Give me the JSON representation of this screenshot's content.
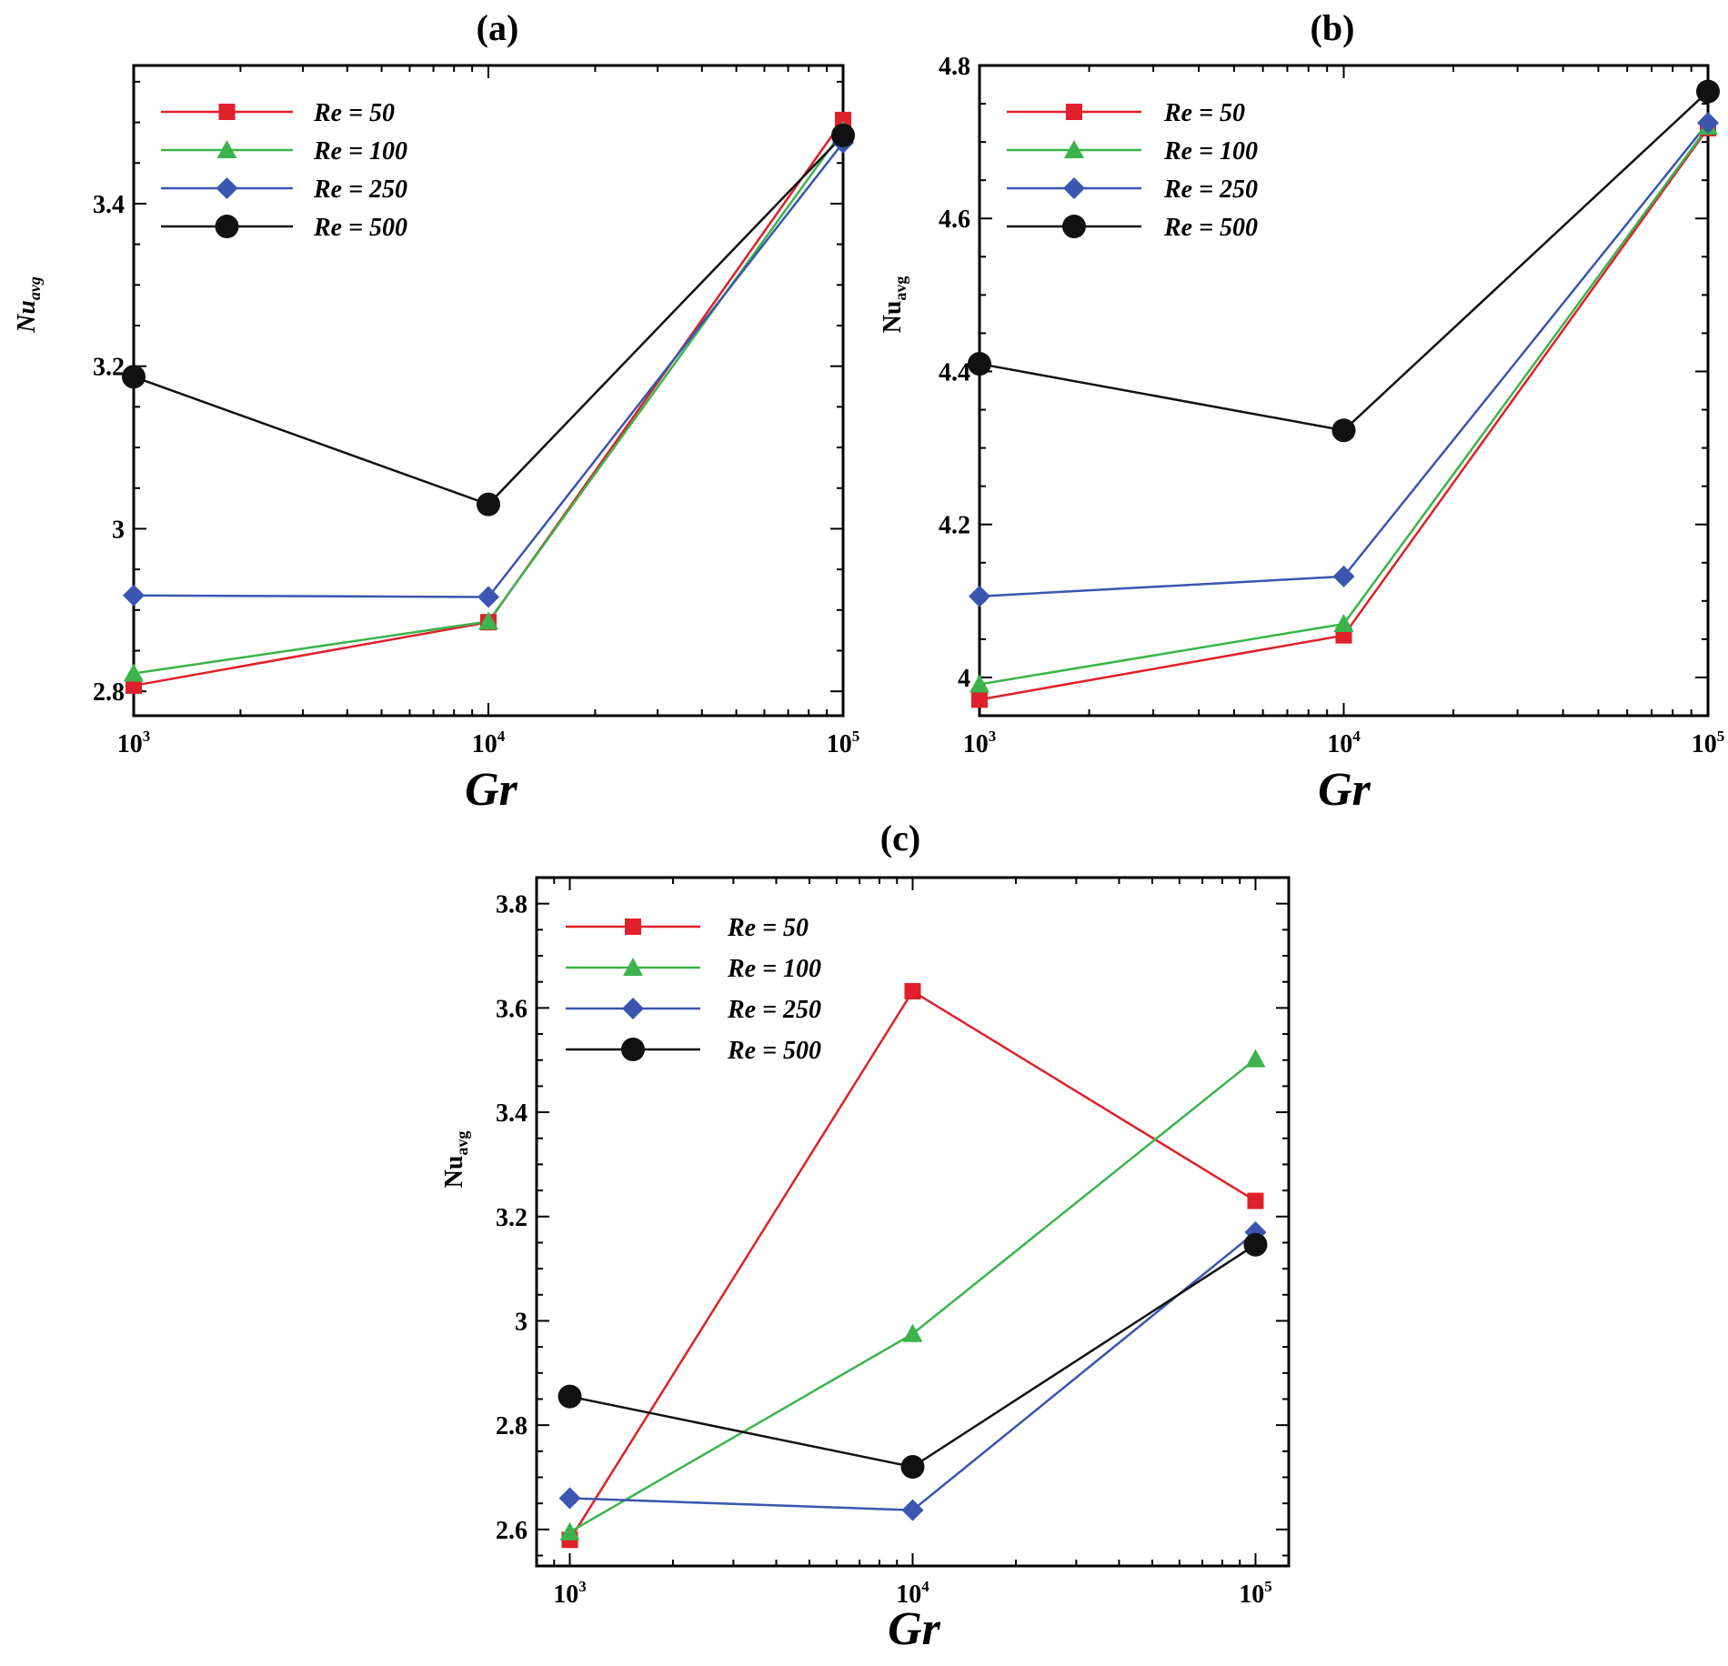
{
  "chart_data": [
    {
      "type": "line",
      "panel_title": "(a)",
      "xlabel": "Gr",
      "ylabel": {
        "base": "Nu",
        "sub": "avg"
      },
      "ylabel_italic": true,
      "x_scale": "log",
      "x": [
        1000,
        10000,
        100000
      ],
      "x_tick_labels": [
        {
          "base": "10",
          "exp": "3"
        },
        {
          "base": "10",
          "exp": "4"
        },
        {
          "base": "10",
          "exp": "5"
        }
      ],
      "xlim": [
        1000,
        100000
      ],
      "ylim": [
        2.77,
        3.57
      ],
      "y_ticks": [
        2.8,
        3,
        3.2,
        3.4
      ],
      "y_tick_labels": [
        "2.8",
        "3",
        "3.2",
        "3.4"
      ],
      "legend_position": "top-left",
      "series": [
        {
          "name": "Re = 50",
          "color": "#e0202a",
          "marker": "square",
          "values": [
            2.807,
            2.885,
            3.503
          ]
        },
        {
          "name": "Re = 100",
          "color": "#3cb44b",
          "marker": "triangle",
          "values": [
            2.822,
            2.886,
            3.49
          ]
        },
        {
          "name": "Re = 250",
          "color": "#3a56b0",
          "marker": "diamond",
          "values": [
            2.918,
            2.916,
            3.475
          ]
        },
        {
          "name": "Re = 500",
          "color": "#111111",
          "marker": "circle",
          "values": [
            3.187,
            3.03,
            3.484
          ]
        }
      ]
    },
    {
      "type": "line",
      "panel_title": "(b)",
      "xlabel": "Gr",
      "ylabel": {
        "base": "Nu",
        "sub": "avg"
      },
      "ylabel_italic": false,
      "x_scale": "log",
      "x": [
        1000,
        10000,
        100000
      ],
      "x_tick_labels": [
        {
          "base": "10",
          "exp": "3"
        },
        {
          "base": "10",
          "exp": "4"
        },
        {
          "base": "10",
          "exp": "5"
        }
      ],
      "xlim": [
        1000,
        100000
      ],
      "ylim": [
        3.95,
        4.8
      ],
      "y_ticks": [
        4,
        4.2,
        4.4,
        4.6,
        4.8
      ],
      "y_tick_labels": [
        "4",
        "4.2",
        "4.4",
        "4.6",
        "4.8"
      ],
      "legend_position": "top-left",
      "series": [
        {
          "name": "Re = 50",
          "color": "#e0202a",
          "marker": "square",
          "values": [
            3.971,
            4.055,
            4.718
          ]
        },
        {
          "name": "Re = 100",
          "color": "#3cb44b",
          "marker": "triangle",
          "values": [
            3.991,
            4.07,
            4.72
          ]
        },
        {
          "name": "Re = 250",
          "color": "#3a56b0",
          "marker": "diamond",
          "values": [
            4.106,
            4.132,
            4.725
          ]
        },
        {
          "name": "Re = 500",
          "color": "#111111",
          "marker": "circle",
          "values": [
            4.41,
            4.323,
            4.766
          ]
        }
      ]
    },
    {
      "type": "line",
      "panel_title": "(c)",
      "xlabel": "Gr",
      "ylabel": {
        "base": "Nu",
        "sub": "avg"
      },
      "ylabel_italic": false,
      "x_scale": "log",
      "x": [
        1000,
        10000,
        100000
      ],
      "x_tick_labels": [
        {
          "base": "10",
          "exp": "3"
        },
        {
          "base": "10",
          "exp": "4"
        },
        {
          "base": "10",
          "exp": "5"
        }
      ],
      "xlim": [
        800,
        125000
      ],
      "ylim": [
        2.53,
        3.85
      ],
      "y_ticks": [
        2.6,
        2.8,
        3,
        3.2,
        3.4,
        3.6,
        3.8
      ],
      "y_tick_labels": [
        "2.6",
        "2.8",
        "3",
        "3.2",
        "3.4",
        "3.6",
        "3.8"
      ],
      "legend_position": "top-left",
      "series": [
        {
          "name": "Re = 50",
          "color": "#e0202a",
          "marker": "square",
          "values": [
            2.58,
            3.632,
            3.23
          ]
        },
        {
          "name": "Re = 100",
          "color": "#3cb44b",
          "marker": "triangle",
          "values": [
            2.595,
            2.975,
            3.502
          ]
        },
        {
          "name": "Re = 250",
          "color": "#3a56b0",
          "marker": "diamond",
          "values": [
            2.66,
            2.637,
            3.17
          ]
        },
        {
          "name": "Re = 500",
          "color": "#111111",
          "marker": "circle",
          "values": [
            2.855,
            2.72,
            3.146
          ]
        }
      ]
    }
  ]
}
